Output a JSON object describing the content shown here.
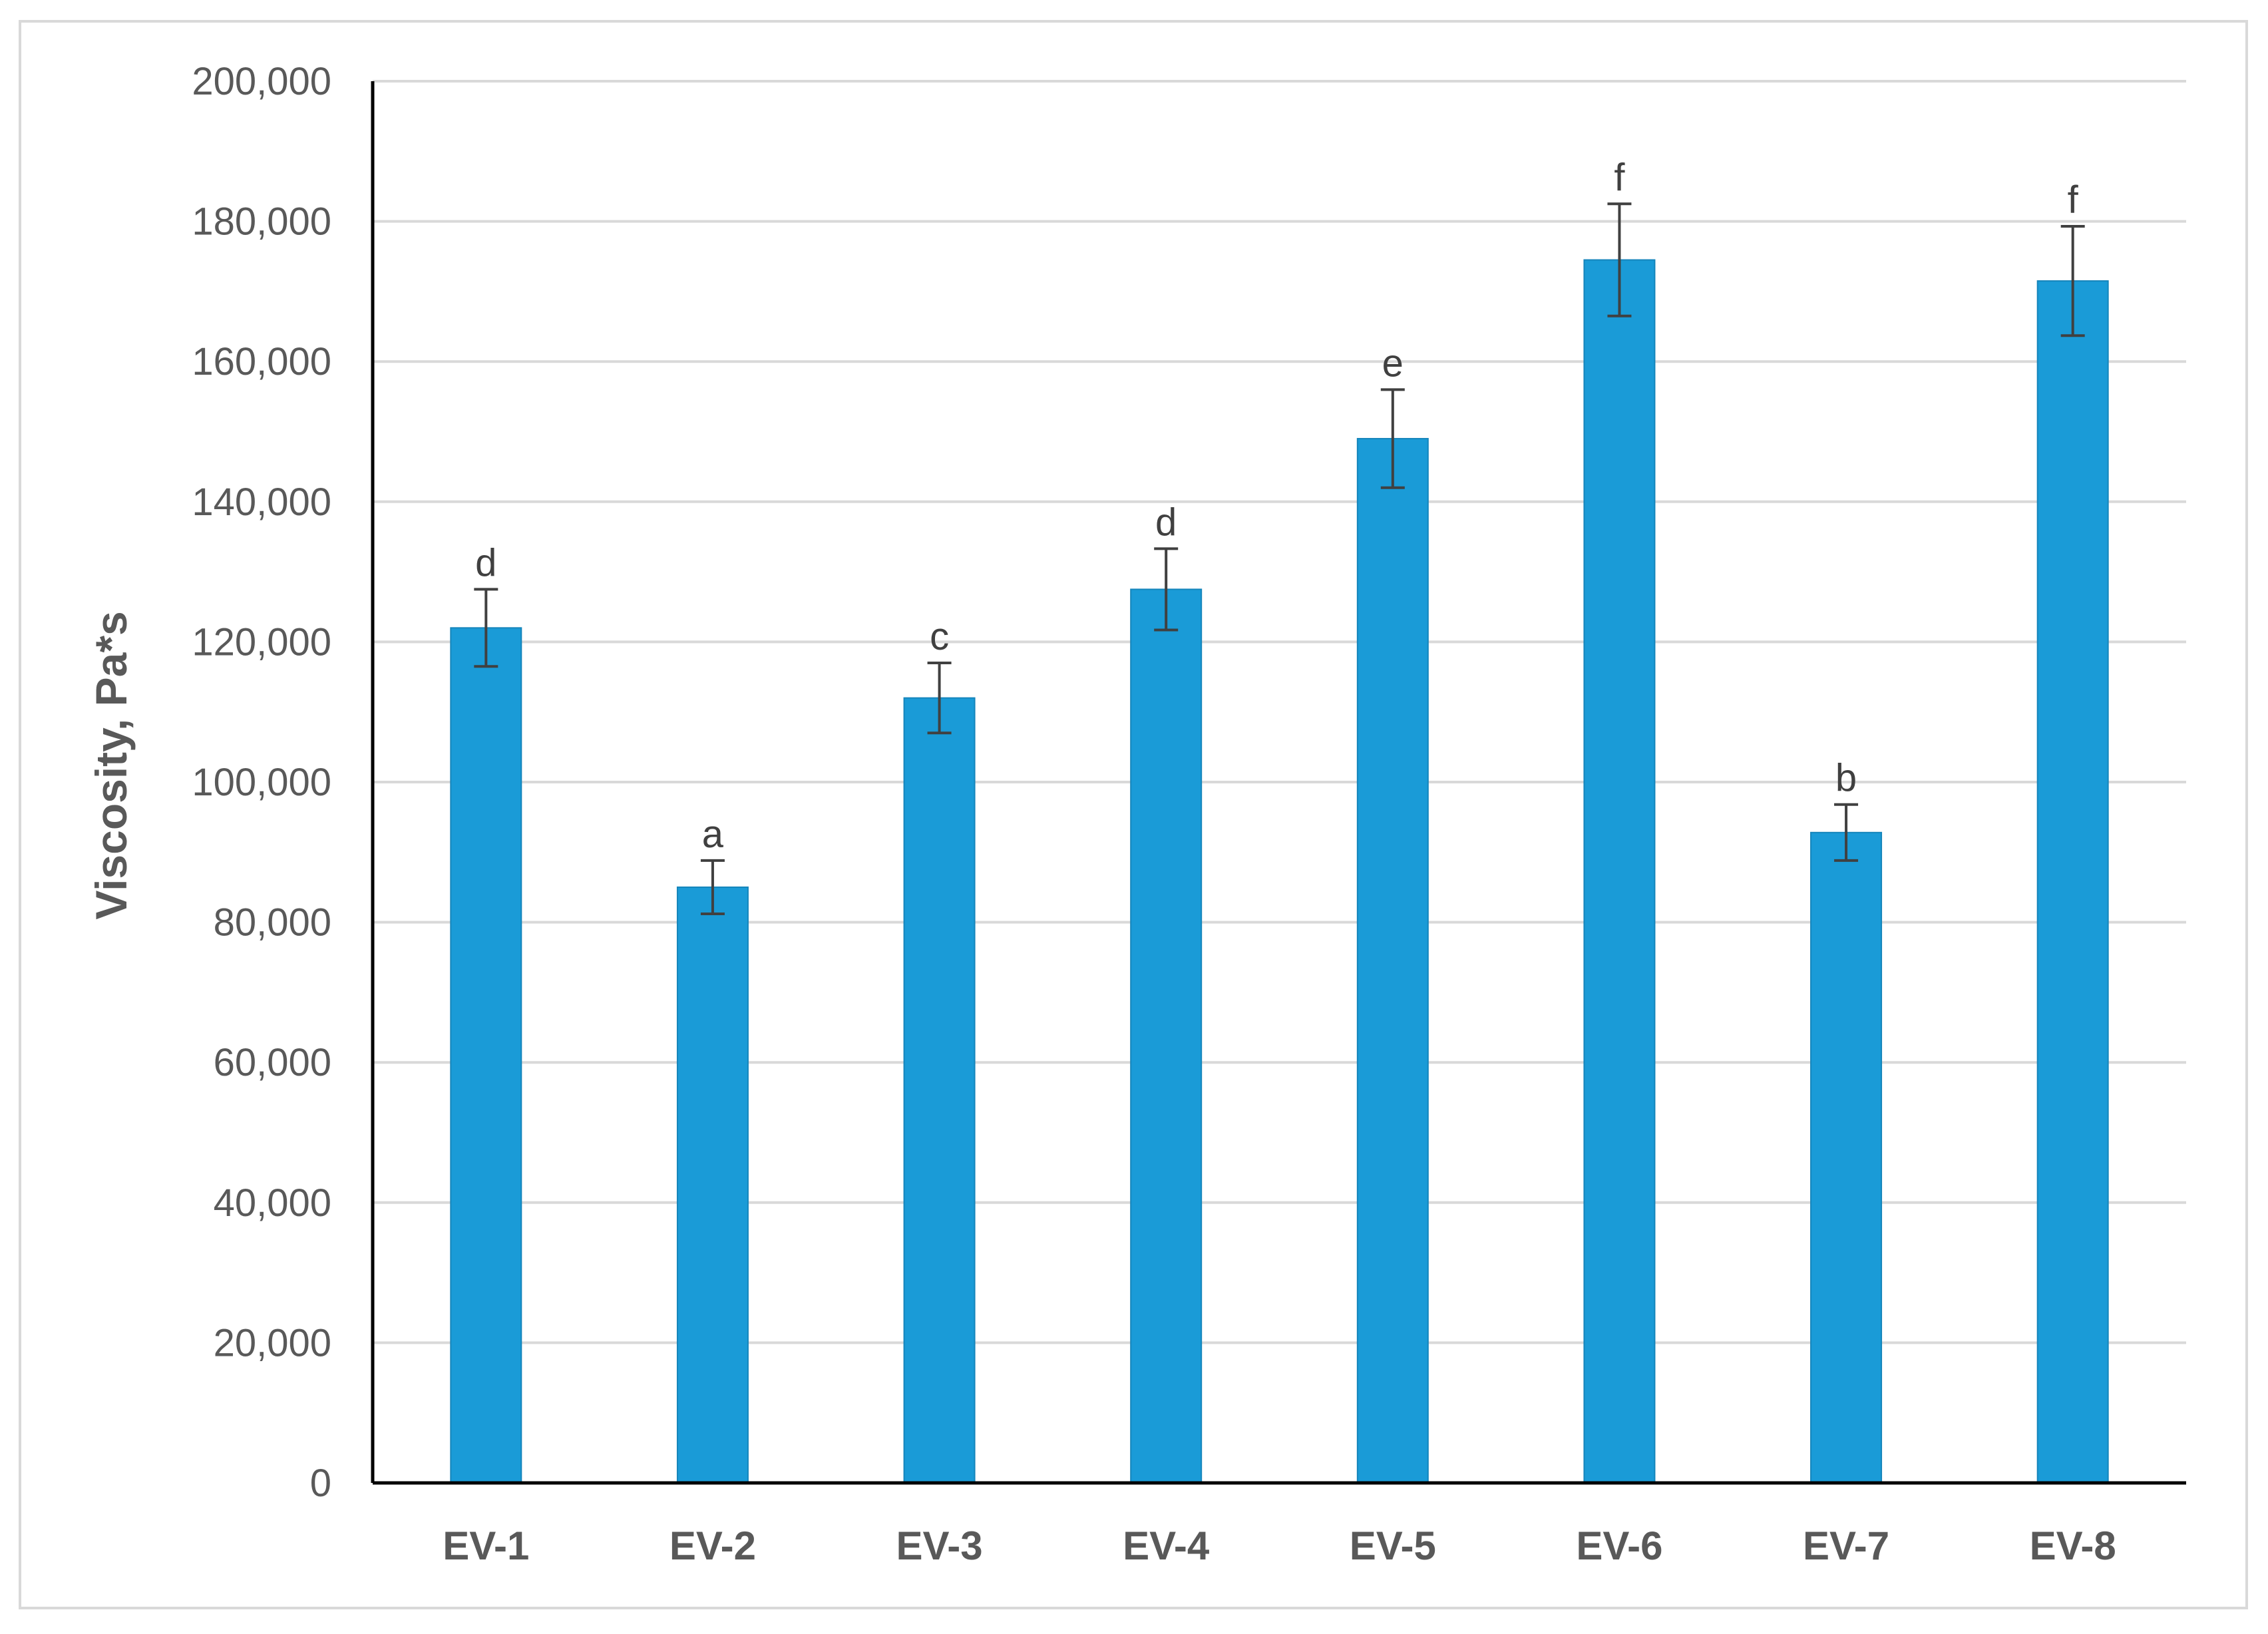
{
  "chart_data": {
    "type": "bar",
    "title": "",
    "xlabel": "",
    "ylabel": "Viscosity, Pa*s",
    "ylim": [
      0,
      200000
    ],
    "yticks": [
      0,
      20000,
      40000,
      60000,
      80000,
      100000,
      120000,
      140000,
      160000,
      180000,
      200000
    ],
    "ytick_labels": [
      "0",
      "20,000",
      "40,000",
      "60,000",
      "80,000",
      "100,000",
      "120,000",
      "140,000",
      "160,000",
      "180,000",
      "200,000"
    ],
    "categories": [
      "EV-1",
      "EV-2",
      "EV-3",
      "EV-4",
      "EV-5",
      "EV-6",
      "EV-7",
      "EV-8"
    ],
    "values": [
      122000,
      85000,
      112000,
      127500,
      149000,
      174500,
      92800,
      171500
    ],
    "error": [
      5500,
      3800,
      5000,
      5800,
      7000,
      8000,
      4000,
      7800
    ],
    "significance_labels": [
      "d",
      "a",
      "c",
      "d",
      "e",
      "f",
      "b",
      "f"
    ],
    "grid": true,
    "legend": "none",
    "colors": {
      "bar": "#1a9bd7",
      "bar_edge": "#1585bb",
      "grid": "#d9d9d9",
      "axis": "#000000",
      "error_bar": "#404040",
      "text": "#595959"
    }
  }
}
